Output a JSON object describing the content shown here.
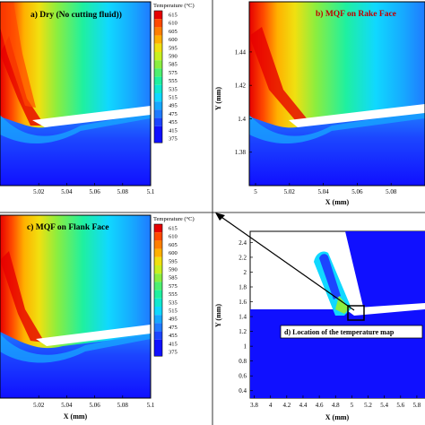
{
  "colors": {
    "contour_scale": [
      "#1010ff",
      "#1c45ff",
      "#1f7aff",
      "#17a8ff",
      "#10d8ff",
      "#10e8d0",
      "#1ff0a0",
      "#4ef070",
      "#8aee40",
      "#c8f020",
      "#f0e010",
      "#ffb000",
      "#ff7f00",
      "#ff4a00",
      "#e60000"
    ],
    "chip_white": "#ffffff",
    "frame": "#000000",
    "marker_box": "#000000"
  },
  "legend": {
    "title": "Temperature (°C)",
    "levels": [
      "615",
      "610",
      "605",
      "600",
      "595",
      "590",
      "585",
      "575",
      "555",
      "535",
      "515",
      "495",
      "475",
      "455",
      "415",
      "375"
    ]
  },
  "chart_data": [
    {
      "type": "heatmap",
      "panel": "a",
      "title": "a) Dry (No cutting fluid))",
      "xlabel": "",
      "ylabel": "",
      "xticks": [
        "5.02",
        "5.04",
        "5.06",
        "5.08",
        "5.1"
      ],
      "yticks": [],
      "xlim": [
        5.0,
        5.1
      ],
      "ylim": [
        1.36,
        1.47
      ],
      "grid": false,
      "legend_placement": "right"
    },
    {
      "type": "heatmap",
      "panel": "b",
      "title": "b) MQF on Rake Face",
      "xlabel": "X (mm)",
      "ylabel": "Y (mm)",
      "xticks": [
        "5",
        "5.02",
        "5.04",
        "5.06",
        "5.08"
      ],
      "yticks": [
        "1.44",
        "1.42",
        "1.4",
        "1.38"
      ],
      "xlim": [
        5.0,
        5.1
      ],
      "ylim": [
        1.36,
        1.47
      ],
      "grid": false
    },
    {
      "type": "heatmap",
      "panel": "c",
      "title": "c) MQF on Flank Face",
      "xlabel": "X (mm)",
      "ylabel": "",
      "xticks": [
        "5.02",
        "5.04",
        "5.06",
        "5.08",
        "5.1"
      ],
      "yticks": [],
      "xlim": [
        5.0,
        5.1
      ],
      "ylim": [
        1.36,
        1.47
      ],
      "grid": false,
      "legend_placement": "right"
    },
    {
      "type": "heatmap",
      "panel": "d",
      "title": "",
      "annotation": "d) Location of the temperature map",
      "xlabel": "X (mm)",
      "ylabel": "Y (mm)",
      "xticks": [
        "3.8",
        "4",
        "4.2",
        "4.4",
        "4.6",
        "4.8",
        "5",
        "5.2",
        "5.4",
        "5.6",
        "5.8"
      ],
      "yticks": [
        "2.4",
        "2.2",
        "2",
        "1.8",
        "1.6",
        "1.4",
        "1.2",
        "1",
        "0.8",
        "0.6",
        "0.4"
      ],
      "xlim": [
        3.75,
        5.9
      ],
      "ylim": [
        0.3,
        2.55
      ],
      "grid": false
    }
  ]
}
